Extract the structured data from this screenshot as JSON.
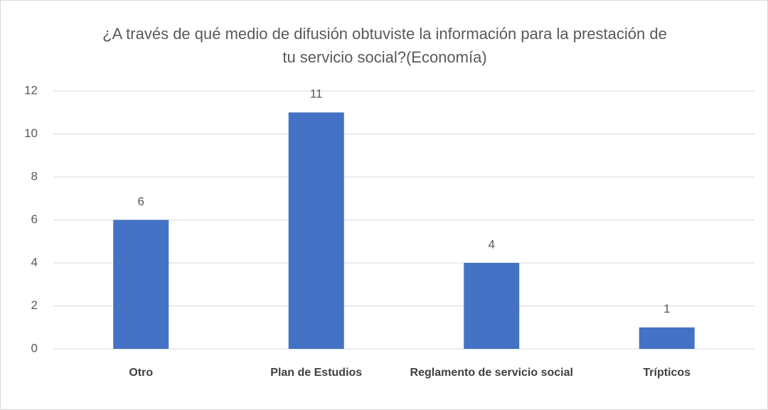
{
  "chart_data": {
    "type": "bar",
    "title": "¿A través de qué medio de difusión obtuviste la información para la prestación de tu servicio social?(Economía)",
    "categories": [
      "Otro",
      "Plan de Estudios",
      "Reglamento de servicio social",
      "Trípticos"
    ],
    "values": [
      6,
      11,
      4,
      1
    ],
    "color": "#4472c4",
    "ylim": [
      0,
      12
    ],
    "yticks": [
      0,
      2,
      4,
      6,
      8,
      10,
      12
    ],
    "grid": true
  }
}
